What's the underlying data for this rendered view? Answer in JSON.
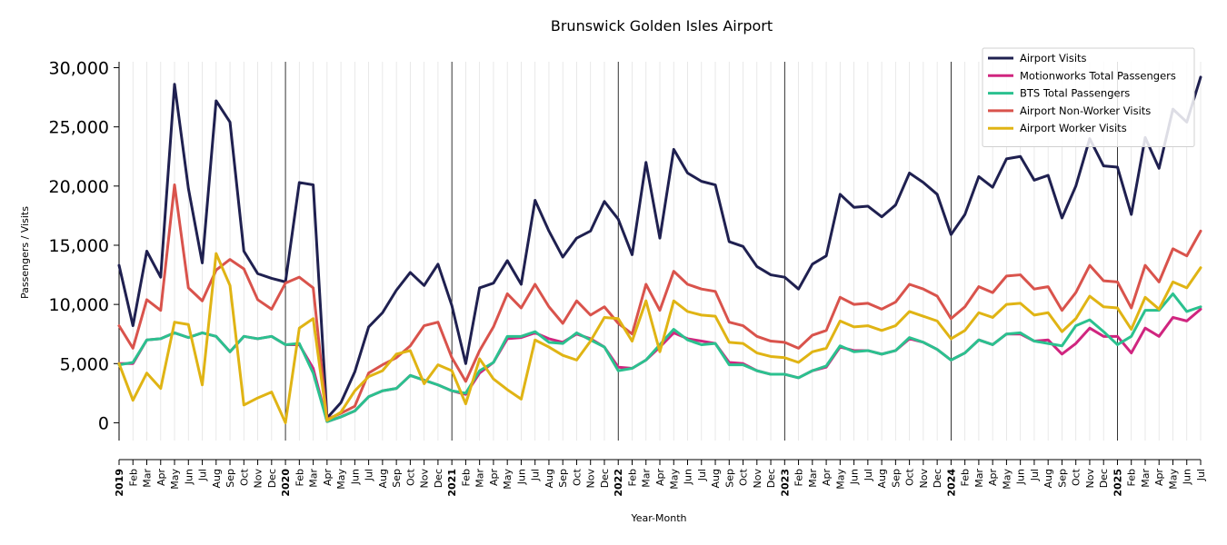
{
  "chart_data": {
    "type": "line",
    "title": "Brunswick Golden Isles Airport",
    "xlabel": "Year-Month",
    "ylabel": "Passengers / Visits",
    "ylim": [
      -1500,
      30500
    ],
    "yticks": [
      0,
      5000,
      10000,
      15000,
      20000,
      25000,
      30000
    ],
    "ytick_labels": [
      "0",
      "5,000",
      "10,000",
      "15,000",
      "20,000",
      "25,000",
      "30,000"
    ],
    "grid": "vertical, monthly",
    "legend_position": "top-right",
    "x": [
      "2019",
      "Feb",
      "Mar",
      "Apr",
      "May",
      "Jun",
      "Jul",
      "Aug",
      "Sep",
      "Oct",
      "Nov",
      "Dec",
      "2020",
      "Feb",
      "Mar",
      "Apr",
      "May",
      "Jun",
      "Jul",
      "Aug",
      "Sep",
      "Oct",
      "Nov",
      "Dec",
      "2021",
      "Feb",
      "Mar",
      "Apr",
      "May",
      "Jun",
      "Jul",
      "Aug",
      "Sep",
      "Oct",
      "Nov",
      "Dec",
      "2022",
      "Feb",
      "Mar",
      "Apr",
      "May",
      "Jun",
      "Jul",
      "Aug",
      "Sep",
      "Oct",
      "Nov",
      "Dec",
      "2023",
      "Feb",
      "Mar",
      "Apr",
      "May",
      "Jun",
      "Jul",
      "Aug",
      "Sep",
      "Oct",
      "Nov",
      "Dec",
      "2024",
      "Feb",
      "Mar",
      "Apr",
      "May",
      "Jun",
      "Jul",
      "Aug",
      "Sep",
      "Oct",
      "Nov",
      "Dec",
      "2025",
      "Feb",
      "Mar",
      "Apr",
      "May",
      "Jun",
      "Jul"
    ],
    "year_labels": [
      "2019",
      "2020",
      "2021",
      "2022",
      "2023",
      "2024",
      "2025"
    ],
    "series": [
      {
        "name": "Airport Visits",
        "color": "#1f2050",
        "values": [
          13300,
          8200,
          14500,
          12300,
          28600,
          19800,
          13500,
          27200,
          25400,
          14500,
          12600,
          12200,
          11900,
          20300,
          20100,
          400,
          1700,
          4300,
          8100,
          9300,
          11200,
          12700,
          11600,
          13400,
          9900,
          5000,
          11400,
          11800,
          13700,
          11700,
          18800,
          16200,
          14000,
          15600,
          16200,
          18700,
          17200,
          14200,
          22000,
          15600,
          23100,
          21100,
          20400,
          20100,
          15300,
          14900,
          13200,
          12500,
          12300,
          11300,
          13400,
          14100,
          19300,
          18200,
          18300,
          17400,
          18400,
          21100,
          20300,
          19300,
          15900,
          17600,
          20800,
          19900,
          22300,
          22500,
          20500,
          20900,
          17300,
          20000,
          24000,
          21700,
          21600,
          17600,
          24100,
          21500,
          26500,
          25400,
          29200
        ]
      },
      {
        "name": "Motionworks Total Passengers",
        "color": "#d0257f",
        "values": [
          5000,
          5000,
          7000,
          7100,
          7600,
          7200,
          7600,
          7300,
          6000,
          7300,
          7100,
          7300,
          6600,
          6600,
          4600,
          100,
          500,
          1000,
          2200,
          2700,
          2900,
          4000,
          3600,
          3200,
          2700,
          2400,
          4200,
          5100,
          7100,
          7200,
          7600,
          7100,
          6800,
          7500,
          7100,
          6400,
          4700,
          4600,
          5300,
          6400,
          7600,
          7100,
          6900,
          6700,
          5100,
          5000,
          4400,
          4100,
          4100,
          3800,
          4400,
          4700,
          6400,
          6100,
          6100,
          5800,
          6100,
          7100,
          6800,
          6200,
          5300,
          5900,
          7000,
          6600,
          7500,
          7500,
          6900,
          7000,
          5800,
          6700,
          8000,
          7300,
          7300,
          5900,
          8000,
          7300,
          8900,
          8600,
          9600
        ]
      },
      {
        "name": "BTS Total Passengers",
        "color": "#2bc18f",
        "values": [
          4900,
          5100,
          7000,
          7100,
          7600,
          7200,
          7600,
          7300,
          6000,
          7300,
          7100,
          7300,
          6600,
          6700,
          4200,
          100,
          500,
          1000,
          2200,
          2700,
          2900,
          4000,
          3600,
          3200,
          2700,
          2500,
          4400,
          5100,
          7300,
          7300,
          7700,
          6800,
          6700,
          7600,
          7000,
          6400,
          4400,
          4600,
          5300,
          6600,
          7900,
          7000,
          6600,
          6700,
          4900,
          4900,
          4400,
          4100,
          4100,
          3800,
          4400,
          4800,
          6500,
          6000,
          6100,
          5800,
          6100,
          7200,
          6800,
          6200,
          5300,
          5900,
          7000,
          6600,
          7500,
          7600,
          6900,
          6700,
          6500,
          8200,
          8700,
          7700,
          6600,
          7300,
          9500,
          9500,
          10900,
          9400,
          9800
        ]
      },
      {
        "name": "Airport Non-Worker Visits",
        "color": "#d9534c",
        "values": [
          8200,
          6300,
          10400,
          9500,
          20100,
          11400,
          10300,
          12900,
          13800,
          13000,
          10400,
          9600,
          11800,
          12300,
          11400,
          300,
          800,
          1400,
          4200,
          4900,
          5500,
          6500,
          8200,
          8500,
          5500,
          3500,
          6100,
          8100,
          10900,
          9700,
          11700,
          9800,
          8400,
          10300,
          9100,
          9800,
          8400,
          7500,
          11700,
          9500,
          12800,
          11700,
          11300,
          11100,
          8500,
          8200,
          7300,
          6900,
          6800,
          6300,
          7400,
          7800,
          10600,
          10000,
          10100,
          9600,
          10200,
          11700,
          11300,
          10700,
          8800,
          9800,
          11500,
          11000,
          12400,
          12500,
          11300,
          11500,
          9500,
          11000,
          13300,
          12000,
          11900,
          9700,
          13300,
          11900,
          14700,
          14100,
          16200
        ]
      },
      {
        "name": "Airport Worker Visits",
        "color": "#e0b414",
        "values": [
          5000,
          1900,
          4200,
          2900,
          8500,
          8300,
          3200,
          14300,
          11600,
          1500,
          2100,
          2600,
          0,
          8000,
          8800,
          200,
          900,
          2700,
          3900,
          4400,
          5800,
          6100,
          3300,
          4900,
          4400,
          1600,
          5400,
          3700,
          2800,
          2000,
          7000,
          6400,
          5700,
          5300,
          6900,
          8900,
          8800,
          6900,
          10300,
          6000,
          10300,
          9400,
          9100,
          9000,
          6800,
          6700,
          5900,
          5600,
          5500,
          5100,
          6000,
          6300,
          8600,
          8100,
          8200,
          7800,
          8200,
          9400,
          9000,
          8600,
          7100,
          7800,
          9300,
          8900,
          10000,
          10100,
          9100,
          9300,
          7700,
          8800,
          10700,
          9800,
          9700,
          7900,
          10600,
          9600,
          11900,
          11400,
          13100
        ]
      }
    ]
  }
}
